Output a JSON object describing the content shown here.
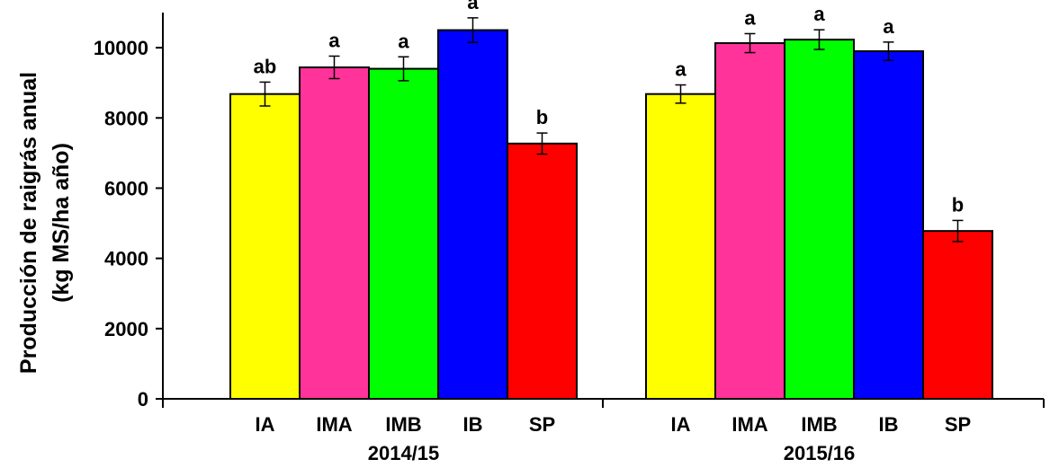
{
  "chart_data": {
    "type": "bar",
    "ylabel_line1": "Producción de raigrás anual",
    "ylabel_line2": "(kg MS/ha año)",
    "ylim": [
      0,
      11000
    ],
    "yticks": [
      0,
      2000,
      4000,
      6000,
      8000,
      10000
    ],
    "grid": false,
    "groups": [
      {
        "label": "2014/15",
        "bars": [
          {
            "category": "IA",
            "value": 8680,
            "error": 340,
            "letter": "ab",
            "color": "#ffff00"
          },
          {
            "category": "IMA",
            "value": 9440,
            "error": 320,
            "letter": "a",
            "color": "#ff3399"
          },
          {
            "category": "IMB",
            "value": 9400,
            "error": 340,
            "letter": "a",
            "color": "#00ff00"
          },
          {
            "category": "IB",
            "value": 10500,
            "error": 350,
            "letter": "a",
            "color": "#0000ff"
          },
          {
            "category": "SP",
            "value": 7270,
            "error": 300,
            "letter": "b",
            "color": "#ff0000"
          }
        ]
      },
      {
        "label": "2015/16",
        "bars": [
          {
            "category": "IA",
            "value": 8680,
            "error": 260,
            "letter": "a",
            "color": "#ffff00"
          },
          {
            "category": "IMA",
            "value": 10130,
            "error": 270,
            "letter": "a",
            "color": "#ff3399"
          },
          {
            "category": "IMB",
            "value": 10230,
            "error": 280,
            "letter": "a",
            "color": "#00ff00"
          },
          {
            "category": "IB",
            "value": 9900,
            "error": 260,
            "letter": "a",
            "color": "#0000ff"
          },
          {
            "category": "SP",
            "value": 4780,
            "error": 300,
            "letter": "b",
            "color": "#ff0000"
          }
        ]
      }
    ]
  }
}
